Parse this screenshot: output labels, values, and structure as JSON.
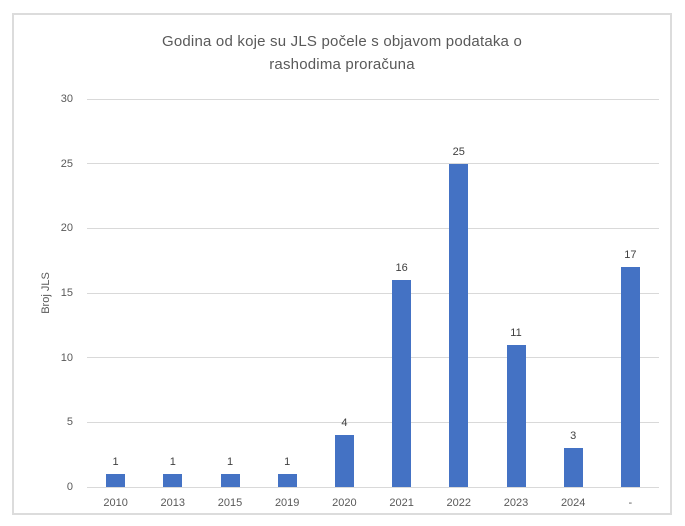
{
  "chart_data": {
    "type": "bar",
    "title": "Godina od koje su JLS počele s objavom podataka o rashodima proračuna",
    "xlabel": "",
    "ylabel": "Broj JLS",
    "categories": [
      "2010",
      "2013",
      "2015",
      "2019",
      "2020",
      "2021",
      "2022",
      "2023",
      "2024",
      "-"
    ],
    "values": [
      1,
      1,
      1,
      1,
      4,
      16,
      25,
      11,
      3,
      17
    ],
    "data_labels_shown": true,
    "ylim": [
      0,
      30
    ],
    "ytick_step": 5,
    "yticks": [
      0,
      5,
      10,
      15,
      20,
      25,
      30
    ],
    "grid": true,
    "legend": false,
    "colors": {
      "bar": "#4472C4",
      "title_text": "#595959",
      "axis_tick_text": "#595959",
      "data_label_text": "#404040",
      "gridline": "#D9D9D9",
      "frame_border": "#DCDCDC",
      "background": "#FFFFFF"
    }
  }
}
